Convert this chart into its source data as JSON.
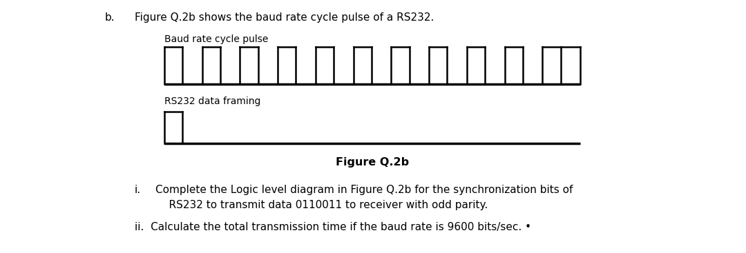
{
  "bg_color": "#ffffff",
  "title_label": "Figure Q.2b",
  "baud_label": "Baud rate cycle pulse",
  "rs232_label": "RS232 data framing",
  "num_pulses": 11,
  "line_color": "#000000",
  "question_i_prefix": "i.",
  "question_i_text": "Complete the Logic level diagram in Figure Q.2b for the synchronization bits of\n    RS232 to transmit data 0110011 to receiver with odd parity.",
  "question_ii_text": "ii.  Calculate the total transmission time if the baud rate is 9600 bits/sec. •",
  "fig_width": 10.8,
  "fig_height": 3.67,
  "dpi": 100,
  "b_label": "b.",
  "top_text": "Figure Q.2b shows the baud rate cycle pulse of a RS232."
}
